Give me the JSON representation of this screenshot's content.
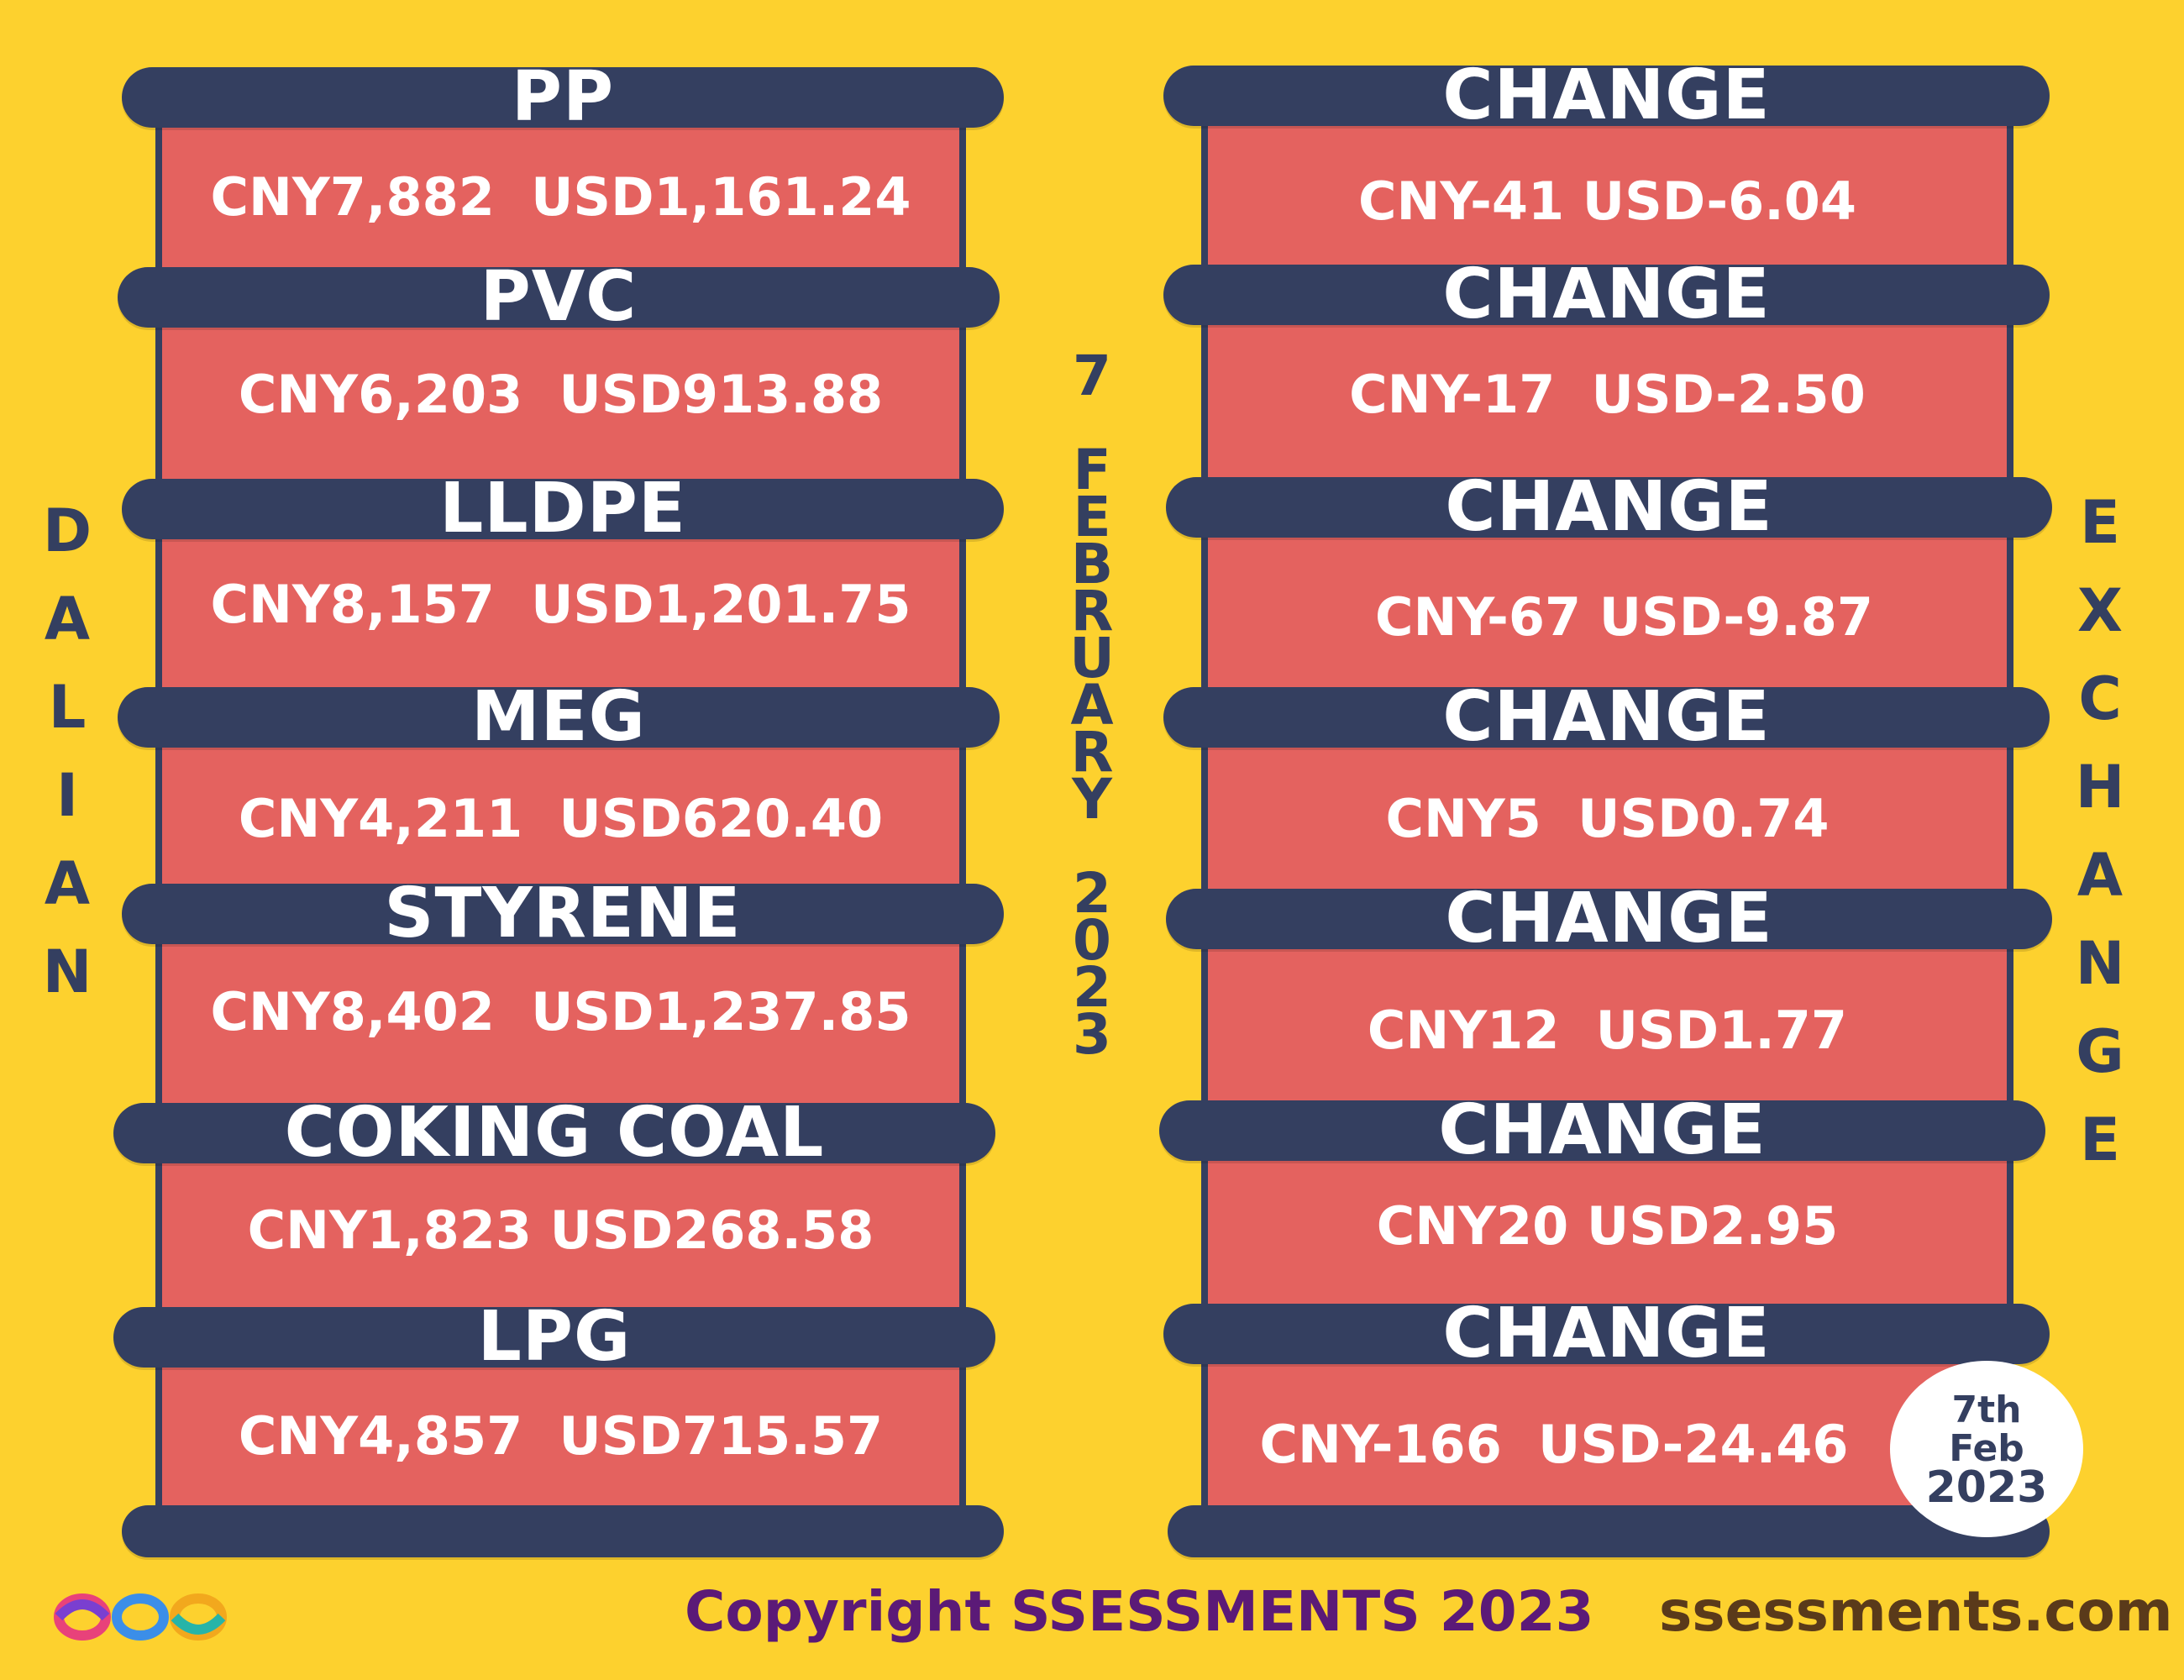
{
  "left_title": [
    "D",
    "A",
    "L",
    "I",
    "A",
    "N"
  ],
  "right_title": [
    "E",
    "X",
    "C",
    "H",
    "A",
    "N",
    "G",
    "E"
  ],
  "center_date": [
    "7",
    "",
    "F",
    "E",
    "B",
    "R",
    "U",
    "A",
    "R",
    "Y",
    "",
    "2",
    "0",
    "2",
    "3"
  ],
  "products": [
    {
      "name": "PP",
      "price": "CNY7,882  USD1,161.24",
      "change_label": "CHANGE",
      "change": "CNY-41 USD-6.04"
    },
    {
      "name": "PVC",
      "price": "CNY6,203  USD913.88",
      "change_label": "CHANGE",
      "change": "CNY-17  USD-2.50"
    },
    {
      "name": "LLDPE",
      "price": "CNY8,157  USD1,201.75",
      "change_label": "CHANGE",
      "change": "CNY-67 USD-9.87"
    },
    {
      "name": "MEG",
      "price": "CNY4,211  USD620.40",
      "change_label": "CHANGE",
      "change": "CNY5  USD0.74"
    },
    {
      "name": "STYRENE",
      "price": "CNY8,402  USD1,237.85",
      "change_label": "CHANGE",
      "change": "CNY12  USD1.77"
    },
    {
      "name": "COKING COAL",
      "price": "CNY1,823 USD268.58",
      "change_label": "CHANGE",
      "change": "CNY20 USD2.95"
    },
    {
      "name": "LPG",
      "price": "CNY4,857  USD715.57",
      "change_label": "CHANGE",
      "change": "CNY-166  USD-24.46"
    }
  ],
  "date_stamp": [
    "7th",
    "Feb",
    "2023"
  ],
  "footer": {
    "copyright": "Copyright SSESSMENTS 2023",
    "website": "ssessments.com"
  },
  "colors": {
    "background": "#FDD12E",
    "panel": "#E4625F",
    "bar": "#343F60",
    "copyright": "#5B1A77"
  }
}
